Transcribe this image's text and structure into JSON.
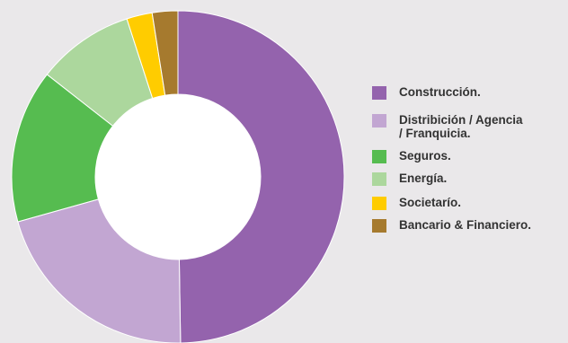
{
  "chart_data": {
    "type": "donut",
    "legend_position": "right",
    "categories": [
      "Construcción.",
      "Distribición / Agencia\n/ Franquicia.",
      "Seguros.",
      "Energía.",
      "Societarío.",
      "Bancario & Financiero."
    ],
    "values": [
      50,
      21,
      15,
      9.5,
      2.5,
      2.5
    ],
    "colors": [
      "#9463ad",
      "#c2a6d2",
      "#56bc50",
      "#acd79d",
      "#ffcc00",
      "#a67a2e"
    ]
  }
}
